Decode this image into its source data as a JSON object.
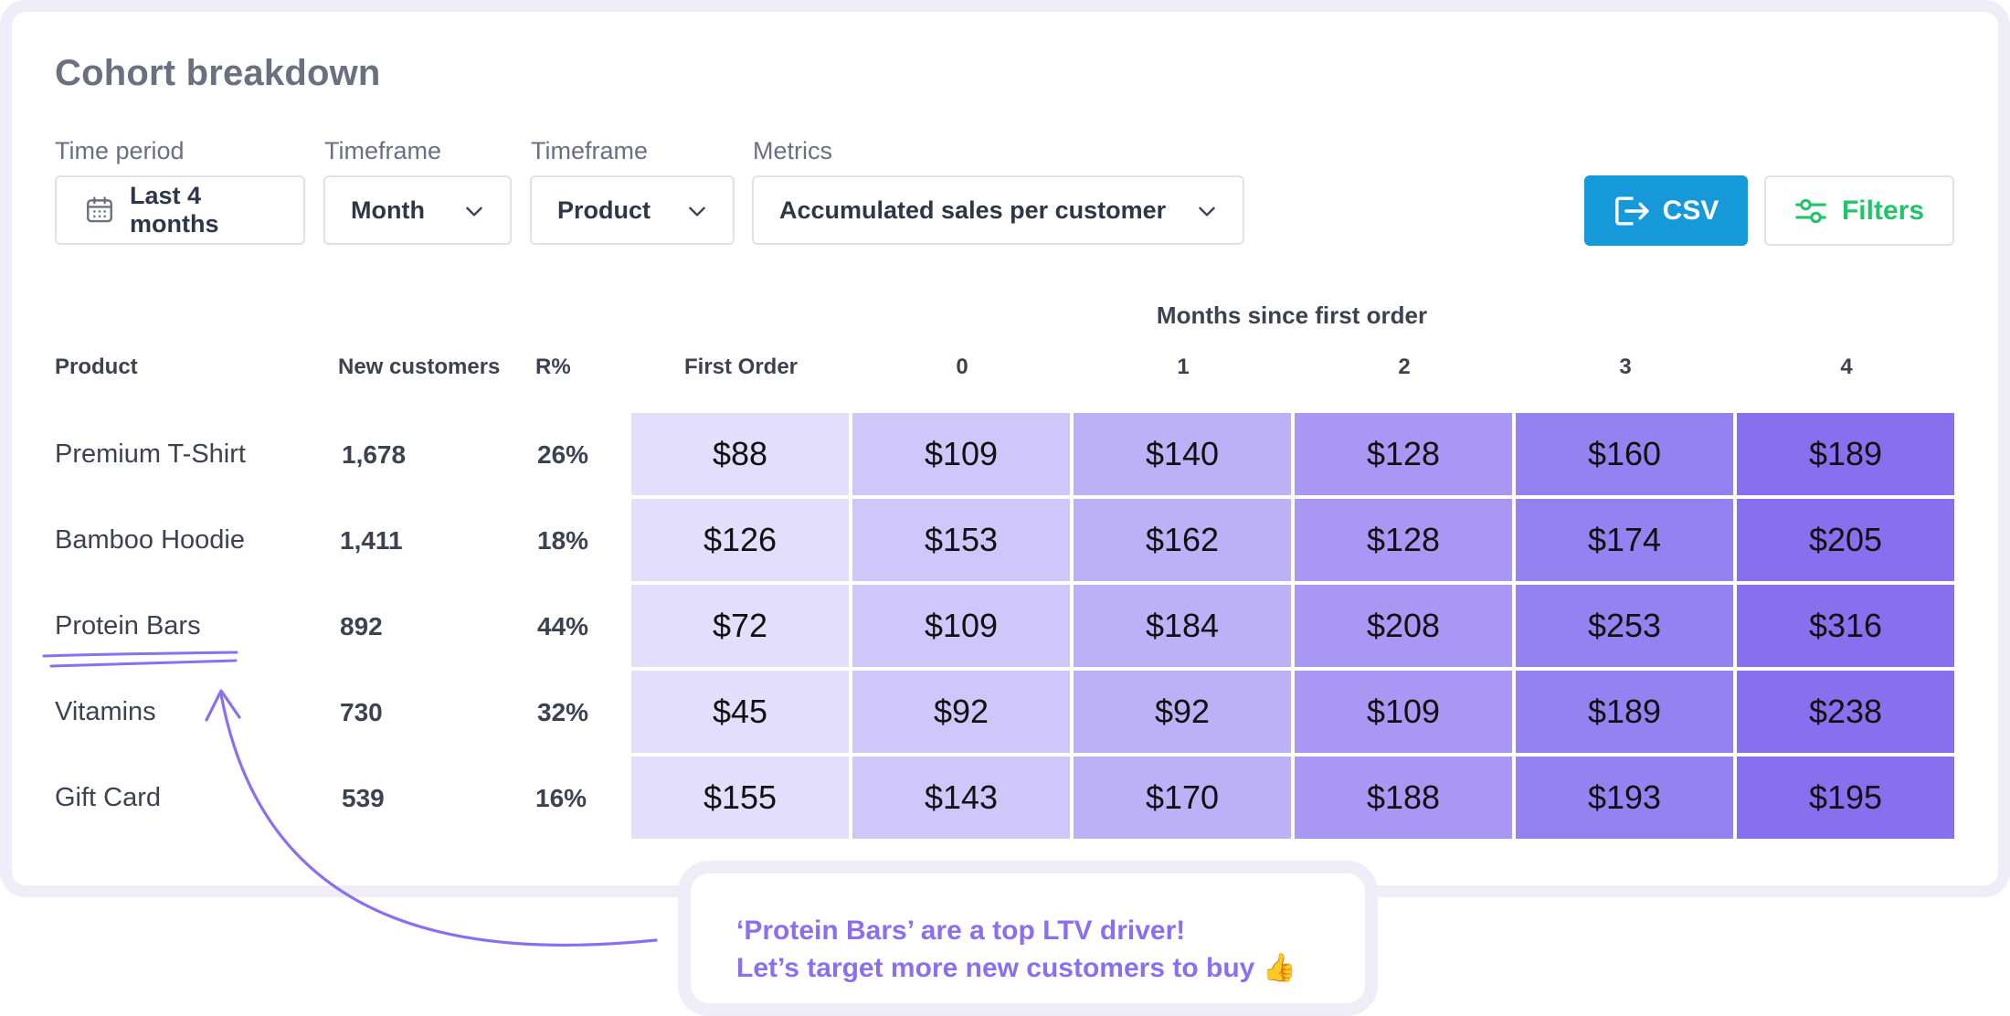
{
  "title": "Cohort breakdown",
  "controls": {
    "time_period": {
      "label": "Time period",
      "value": "Last 4 months"
    },
    "timeframe_1": {
      "label": "Timeframe",
      "value": "Month"
    },
    "timeframe_2": {
      "label": "Timeframe",
      "value": "Product"
    },
    "metrics": {
      "label": "Metrics",
      "value": "Accumulated sales per customer"
    },
    "csv_label": "CSV",
    "filters_label": "Filters"
  },
  "table": {
    "group_header": "Months since first order",
    "headers": {
      "product": "Product",
      "new_customers": "New customers",
      "r_pct": "R%",
      "first_order": "First Order",
      "months": [
        "0",
        "1",
        "2",
        "3",
        "4"
      ]
    },
    "rows": [
      {
        "product": "Premium T-Shirt",
        "new_customers": "1,678",
        "r_pct": "26%",
        "values": [
          "$88",
          "$109",
          "$140",
          "$128",
          "$160",
          "$189"
        ]
      },
      {
        "product": "Bamboo Hoodie",
        "new_customers": "1,411",
        "r_pct": "18%",
        "values": [
          "$126",
          "$153",
          "$162",
          "$128",
          "$174",
          "$205"
        ]
      },
      {
        "product": "Protein Bars",
        "new_customers": "892",
        "r_pct": "44%",
        "values": [
          "$72",
          "$109",
          "$184",
          "$208",
          "$253",
          "$316"
        ]
      },
      {
        "product": "Vitamins",
        "new_customers": "730",
        "r_pct": "32%",
        "values": [
          "$45",
          "$92",
          "$92",
          "$109",
          "$189",
          "$238"
        ]
      },
      {
        "product": "Gift Card",
        "new_customers": "539",
        "r_pct": "16%",
        "values": [
          "$155",
          "$143",
          "$170",
          "$188",
          "$193",
          "$195"
        ]
      }
    ],
    "column_colors": [
      "#e3defb",
      "#cfc6f9",
      "#bcb0f6",
      "#a898f4",
      "#9582f1",
      "#8670ee"
    ]
  },
  "callout": {
    "line1": "‘Protein Bars’ are a top LTV driver!",
    "line2": "Let’s target more new customers to buy",
    "emoji": "👍"
  },
  "colors": {
    "accent_purple": "#8b6ff0",
    "csv_blue": "#1599d8",
    "filters_green": "#22c36a"
  }
}
